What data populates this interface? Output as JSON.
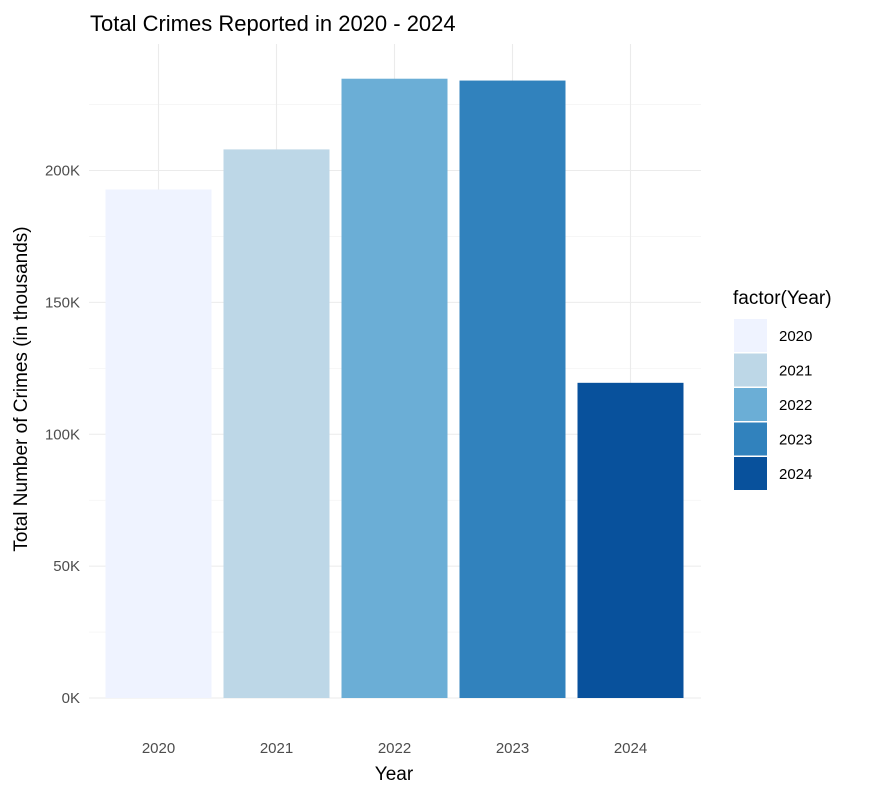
{
  "chart_data": {
    "type": "bar",
    "title": "Total Crimes Reported in 2020 - 2024",
    "xlabel": "Year",
    "ylabel": "Total Number of Crimes (in thousands)",
    "categories": [
      "2020",
      "2021",
      "2022",
      "2023",
      "2024"
    ],
    "values": [
      192800,
      208000,
      234800,
      234100,
      119500
    ],
    "colors": [
      "#eff3ff",
      "#bdd7e7",
      "#6baed6",
      "#3182bd",
      "#08519c"
    ],
    "ylim": [
      0,
      245000
    ],
    "yticks": [
      0,
      50000,
      100000,
      150000,
      200000
    ],
    "ytick_labels": [
      "0K",
      "50K",
      "100K",
      "150K",
      "200K"
    ],
    "grid": true,
    "legend": {
      "title": "factor(Year)",
      "position": "right",
      "entries": [
        "2020",
        "2021",
        "2022",
        "2023",
        "2024"
      ]
    }
  }
}
